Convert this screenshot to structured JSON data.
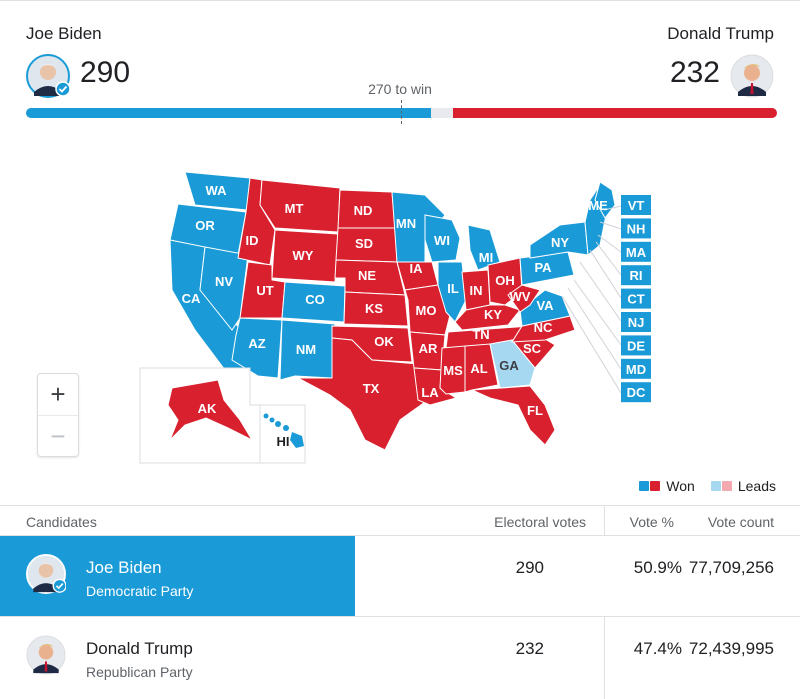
{
  "header": {
    "left": {
      "name": "Joe Biden",
      "electoral_votes": "290"
    },
    "right": {
      "name": "Donald Trump",
      "electoral_votes": "232"
    },
    "win_label": "270 to win",
    "bar": {
      "total": 538,
      "dem": 290,
      "rep": 232
    }
  },
  "colors": {
    "dem_won": "#1a9bd7",
    "rep_won": "#d8202e",
    "dem_leads": "#a6d8f2",
    "rep_leads": "#f4a9b0",
    "background": "#ffffff"
  },
  "map": {
    "zoom": {
      "in": "+",
      "out": "−"
    },
    "states": [
      {
        "code": "WA",
        "party": "D"
      },
      {
        "code": "OR",
        "party": "D"
      },
      {
        "code": "CA",
        "party": "D"
      },
      {
        "code": "NV",
        "party": "D"
      },
      {
        "code": "ID",
        "party": "R"
      },
      {
        "code": "MT",
        "party": "R"
      },
      {
        "code": "WY",
        "party": "R"
      },
      {
        "code": "UT",
        "party": "R"
      },
      {
        "code": "AZ",
        "party": "D"
      },
      {
        "code": "CO",
        "party": "D"
      },
      {
        "code": "NM",
        "party": "D"
      },
      {
        "code": "ND",
        "party": "R"
      },
      {
        "code": "SD",
        "party": "R"
      },
      {
        "code": "NE",
        "party": "R"
      },
      {
        "code": "KS",
        "party": "R"
      },
      {
        "code": "OK",
        "party": "R"
      },
      {
        "code": "TX",
        "party": "R"
      },
      {
        "code": "MN",
        "party": "D"
      },
      {
        "code": "IA",
        "party": "R"
      },
      {
        "code": "MO",
        "party": "R"
      },
      {
        "code": "AR",
        "party": "R"
      },
      {
        "code": "LA",
        "party": "R"
      },
      {
        "code": "WI",
        "party": "D"
      },
      {
        "code": "IL",
        "party": "D"
      },
      {
        "code": "MI",
        "party": "D"
      },
      {
        "code": "IN",
        "party": "R"
      },
      {
        "code": "OH",
        "party": "R"
      },
      {
        "code": "KY",
        "party": "R"
      },
      {
        "code": "TN",
        "party": "R"
      },
      {
        "code": "MS",
        "party": "R"
      },
      {
        "code": "AL",
        "party": "R"
      },
      {
        "code": "GA",
        "party": "DL"
      },
      {
        "code": "FL",
        "party": "R"
      },
      {
        "code": "SC",
        "party": "R"
      },
      {
        "code": "NC",
        "party": "R"
      },
      {
        "code": "VA",
        "party": "D"
      },
      {
        "code": "WV",
        "party": "R"
      },
      {
        "code": "PA",
        "party": "D"
      },
      {
        "code": "NY",
        "party": "D"
      },
      {
        "code": "ME",
        "party": "D"
      },
      {
        "code": "AK",
        "party": "R"
      },
      {
        "code": "HI",
        "party": "D"
      }
    ],
    "small_states": [
      "VT",
      "NH",
      "MA",
      "RI",
      "CT",
      "NJ",
      "DE",
      "MD",
      "DC"
    ]
  },
  "legend": {
    "won": "Won",
    "leads": "Leads"
  },
  "table": {
    "headers": {
      "candidates": "Candidates",
      "electoral": "Electoral votes",
      "vote_pct": "Vote %",
      "vote_count": "Vote count"
    },
    "rows": [
      {
        "name": "Joe Biden",
        "party": "Democratic Party",
        "electoral": "290",
        "pct": "50.9%",
        "count": "77,709,256"
      },
      {
        "name": "Donald Trump",
        "party": "Republican Party",
        "electoral": "232",
        "pct": "47.4%",
        "count": "72,439,995"
      }
    ]
  }
}
